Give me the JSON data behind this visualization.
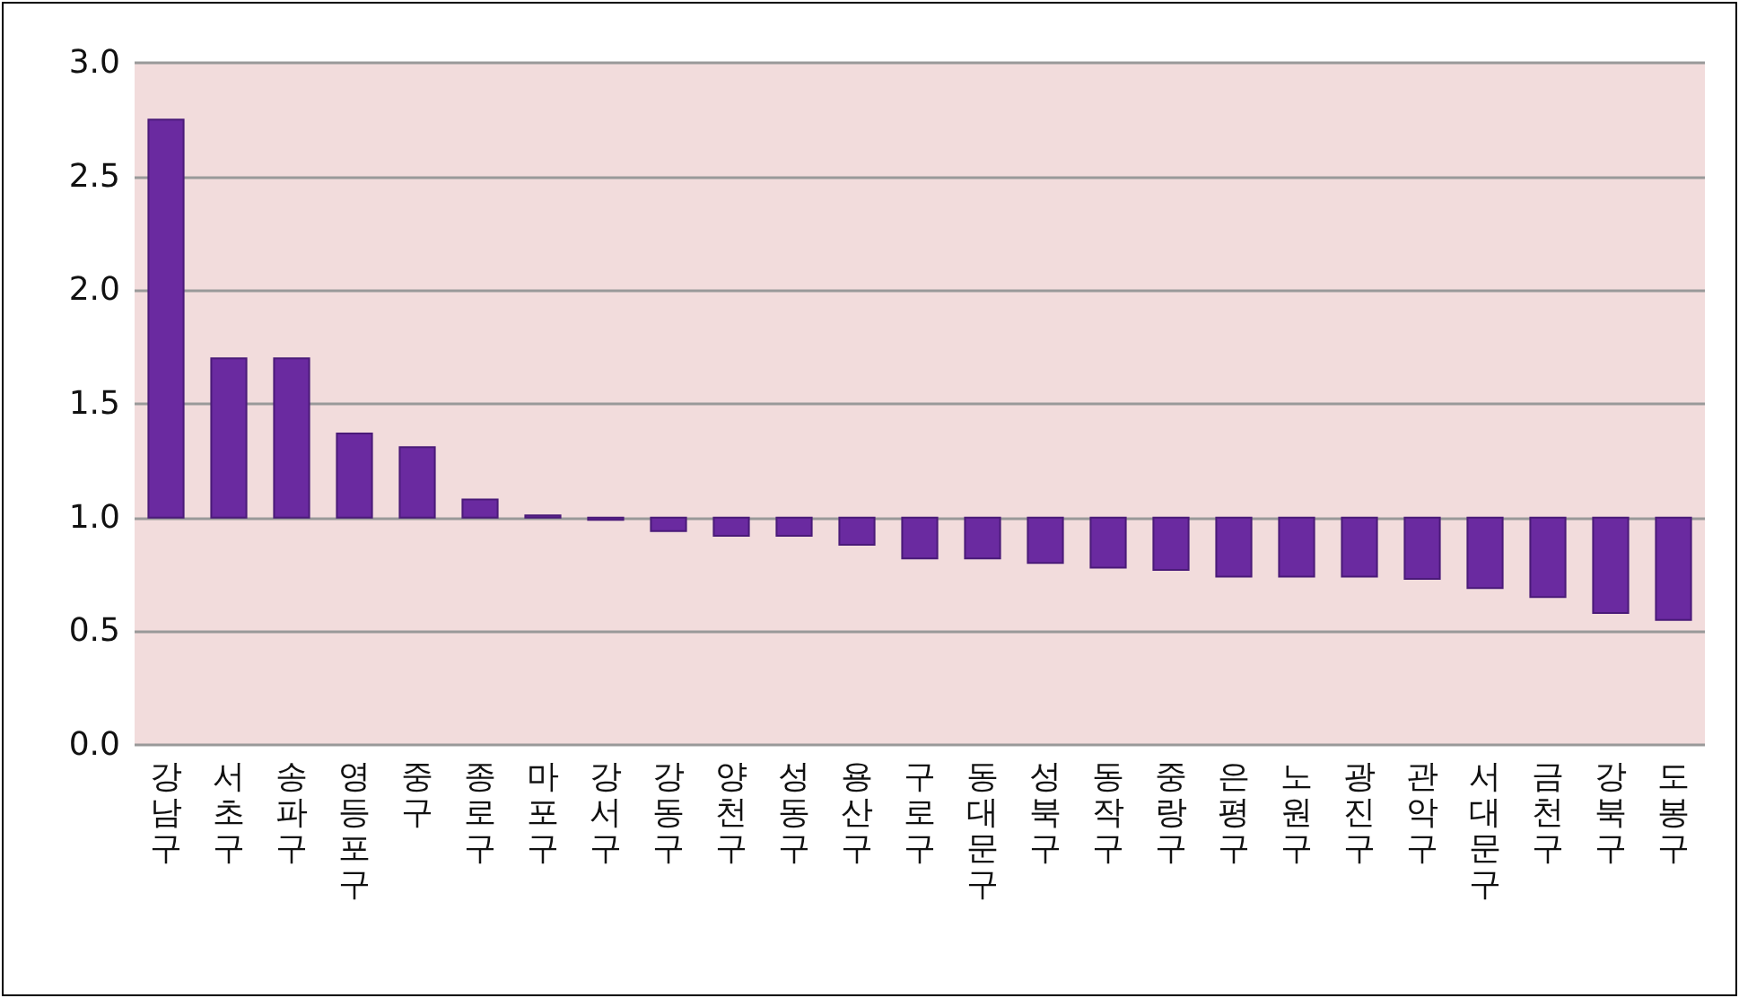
{
  "chart_data": {
    "type": "bar",
    "categories": [
      "강남구",
      "서초구",
      "송파구",
      "영등포구",
      "중구",
      "종로구",
      "마포구",
      "강서구",
      "강동구",
      "양천구",
      "성동구",
      "용산구",
      "구로구",
      "동대문구",
      "성북구",
      "동작구",
      "중랑구",
      "은평구",
      "노원구",
      "광진구",
      "관악구",
      "서대문구",
      "금천구",
      "강북구",
      "도봉구"
    ],
    "base": [
      1,
      1,
      1,
      1,
      1,
      1,
      1,
      1,
      1,
      1,
      1,
      1,
      1,
      1,
      1,
      1,
      1,
      1,
      1,
      1,
      1,
      1,
      1,
      1,
      1
    ],
    "values": [
      1.75,
      0.7,
      0.7,
      0.37,
      0.31,
      0.08,
      0.01,
      -0.01,
      -0.06,
      -0.08,
      -0.08,
      -0.12,
      -0.18,
      -0.18,
      -0.2,
      -0.22,
      -0.23,
      -0.26,
      -0.26,
      -0.26,
      -0.27,
      -0.31,
      -0.35,
      -0.42,
      -0.45
    ],
    "color": "#6a2aa0",
    "ylim": [
      0,
      3
    ],
    "yticks": [
      {
        "value": 0,
        "label": "0.0"
      },
      {
        "value": 0.5,
        "label": "0.5"
      },
      {
        "value": 1,
        "label": "1.0"
      },
      {
        "value": 1.5,
        "label": "1.5"
      },
      {
        "value": 2,
        "label": "2.0"
      },
      {
        "value": 2.5,
        "label": "2.5"
      },
      {
        "value": 3,
        "label": "3.0"
      }
    ],
    "grid": "y"
  }
}
